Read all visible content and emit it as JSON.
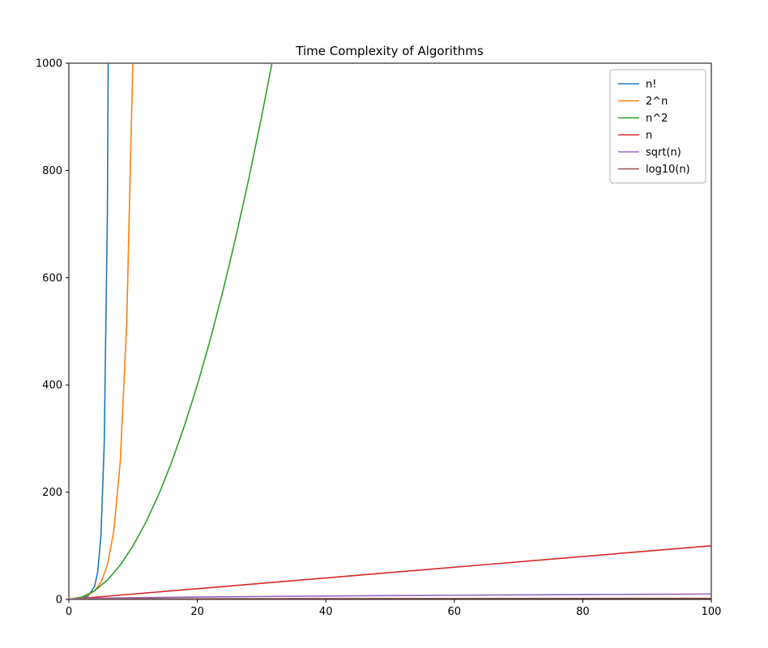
{
  "chart_data": {
    "type": "line",
    "title": "Time Complexity of Algorithms",
    "xlabel": "",
    "ylabel": "",
    "xlim": [
      0,
      100
    ],
    "ylim": [
      0,
      1000
    ],
    "x_ticks": [
      0,
      20,
      40,
      60,
      80,
      100
    ],
    "y_ticks": [
      0,
      200,
      400,
      600,
      800,
      1000
    ],
    "grid": false,
    "legend_position": "upper right",
    "frame_color": "#000000",
    "legend_border_color": "#b3b3b3",
    "series": [
      {
        "name": "n!",
        "color": "#1f77b4",
        "points": [
          [
            0,
            1
          ],
          [
            1,
            1
          ],
          [
            2,
            2
          ],
          [
            3,
            6
          ],
          [
            4,
            24
          ],
          [
            4.5,
            52
          ],
          [
            5,
            120
          ],
          [
            5.5,
            288
          ],
          [
            6,
            720
          ],
          [
            6.5,
            1871
          ],
          [
            7,
            5040
          ]
        ]
      },
      {
        "name": "2^n",
        "color": "#ff7f0e",
        "points": [
          [
            0,
            1
          ],
          [
            1,
            2
          ],
          [
            2,
            4
          ],
          [
            3,
            8
          ],
          [
            4,
            16
          ],
          [
            5,
            32
          ],
          [
            6,
            64
          ],
          [
            7,
            128
          ],
          [
            8,
            256
          ],
          [
            9,
            512
          ],
          [
            10,
            1024
          ],
          [
            11,
            2048
          ]
        ]
      },
      {
        "name": "n^2",
        "color": "#2ca02c",
        "points": [
          [
            0,
            0
          ],
          [
            2,
            4
          ],
          [
            4,
            16
          ],
          [
            6,
            36
          ],
          [
            8,
            64
          ],
          [
            10,
            100
          ],
          [
            12,
            144
          ],
          [
            14,
            196
          ],
          [
            16,
            256
          ],
          [
            18,
            324
          ],
          [
            20,
            400
          ],
          [
            22,
            484
          ],
          [
            24,
            576
          ],
          [
            26,
            676
          ],
          [
            28,
            784
          ],
          [
            30,
            900
          ],
          [
            32,
            1024
          ],
          [
            34,
            1156
          ]
        ]
      },
      {
        "name": "n",
        "color": "#d62728",
        "points": [
          [
            0,
            0
          ],
          [
            100,
            100
          ]
        ]
      },
      {
        "name": "sqrt(n)",
        "color": "#9467bd",
        "points": [
          [
            0,
            0
          ],
          [
            2,
            1.41
          ],
          [
            5,
            2.24
          ],
          [
            10,
            3.16
          ],
          [
            20,
            4.47
          ],
          [
            30,
            5.48
          ],
          [
            40,
            6.32
          ],
          [
            50,
            7.07
          ],
          [
            60,
            7.75
          ],
          [
            70,
            8.37
          ],
          [
            80,
            8.94
          ],
          [
            90,
            9.49
          ],
          [
            100,
            10
          ]
        ]
      },
      {
        "name": "log10(n)",
        "color": "#8c564b",
        "points": [
          [
            1,
            0
          ],
          [
            2,
            0.3
          ],
          [
            5,
            0.7
          ],
          [
            10,
            1
          ],
          [
            20,
            1.3
          ],
          [
            40,
            1.6
          ],
          [
            70,
            1.85
          ],
          [
            100,
            2
          ]
        ]
      }
    ]
  }
}
